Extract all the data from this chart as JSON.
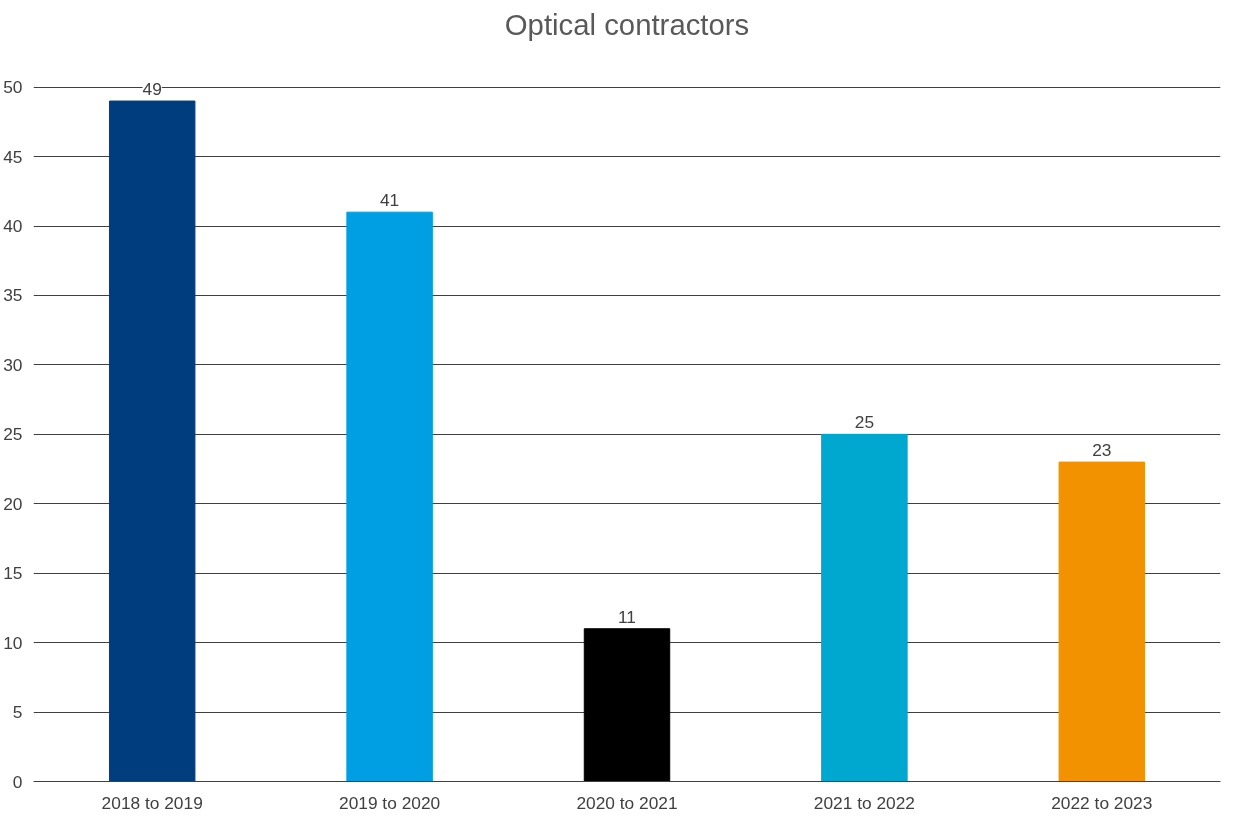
{
  "chart_data": {
    "type": "bar",
    "title": "Optical contractors",
    "categories": [
      "2018 to 2019",
      "2019 to 2020",
      "2020 to 2021",
      "2021 to 2022",
      "2022 to 2023"
    ],
    "values": [
      49,
      41,
      11,
      25,
      23
    ],
    "colors": [
      "#003d7f",
      "#009fe3",
      "#000000",
      "#00a8cf",
      "#f39200"
    ],
    "ylim": [
      0,
      50
    ],
    "yticks": [
      0,
      5,
      10,
      15,
      20,
      25,
      30,
      35,
      40,
      45,
      50
    ],
    "grid": "y",
    "data_labels": true
  }
}
